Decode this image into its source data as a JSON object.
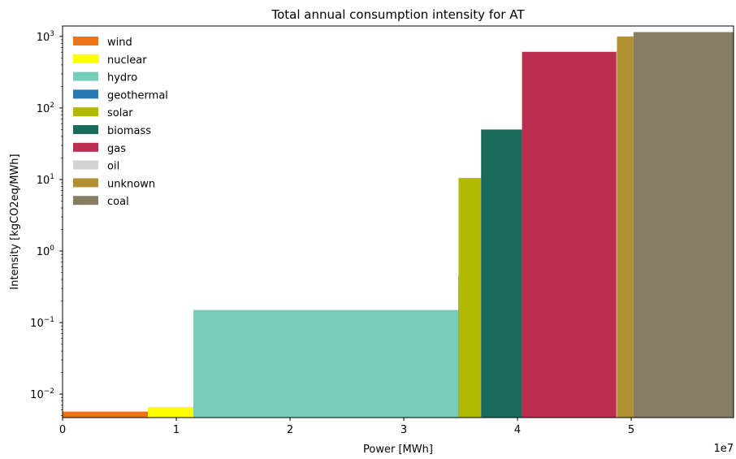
{
  "chart_data": {
    "type": "bar",
    "title": "Total annual consumption intensity for AT",
    "xlabel": "Power [MWh]",
    "ylabel": "Intensity [kgCO2eq/MWh]",
    "x_offset_label": "1e7",
    "x_scale_factor": 10000000,
    "xlim": [
      0,
      59000000
    ],
    "ylim": [
      0.0047,
      1400
    ],
    "yscale": "log",
    "x_ticks": [
      {
        "value": 0,
        "label": "0"
      },
      {
        "value": 10000000,
        "label": "1"
      },
      {
        "value": 20000000,
        "label": "2"
      },
      {
        "value": 30000000,
        "label": "3"
      },
      {
        "value": 40000000,
        "label": "4"
      },
      {
        "value": 50000000,
        "label": "5"
      }
    ],
    "y_ticks": [
      {
        "value": 0.01,
        "base": "10",
        "exp": "−2"
      },
      {
        "value": 0.1,
        "base": "10",
        "exp": "−1"
      },
      {
        "value": 1,
        "base": "10",
        "exp": "0"
      },
      {
        "value": 10,
        "base": "10",
        "exp": "1"
      },
      {
        "value": 100,
        "base": "10",
        "exp": "2"
      },
      {
        "value": 1000,
        "base": "10",
        "exp": "3"
      }
    ],
    "legend_position": "top-left",
    "grid": false,
    "series": [
      {
        "name": "wind",
        "color": "#f07415",
        "x_start": 0,
        "x_end": 7500000,
        "value": 0.0057
      },
      {
        "name": "nuclear",
        "color": "#ffff00",
        "x_start": 7500000,
        "x_end": 11500000,
        "value": 0.0066
      },
      {
        "name": "hydro",
        "color": "#76cdb8",
        "x_start": 11500000,
        "x_end": 34800000,
        "value": 0.15
      },
      {
        "name": "geothermal",
        "color": "#2878b5",
        "x_start": 34800000,
        "x_end": 34820000,
        "value": 0.45
      },
      {
        "name": "solar",
        "color": "#b0b800",
        "x_start": 34820000,
        "x_end": 36800000,
        "value": 10.5
      },
      {
        "name": "biomass",
        "color": "#1a6b5c",
        "x_start": 36800000,
        "x_end": 40400000,
        "value": 50
      },
      {
        "name": "gas",
        "color": "#bc2e4f",
        "x_start": 40400000,
        "x_end": 48700000,
        "value": 610
      },
      {
        "name": "oil",
        "color": "#d3d3d3",
        "x_start": 48700000,
        "x_end": 48750000,
        "value": 650
      },
      {
        "name": "unknown",
        "color": "#b18f32",
        "x_start": 48750000,
        "x_end": 50200000,
        "value": 1000
      },
      {
        "name": "coal",
        "color": "#877d63",
        "x_start": 50200000,
        "x_end": 59000000,
        "value": 1150
      }
    ]
  }
}
